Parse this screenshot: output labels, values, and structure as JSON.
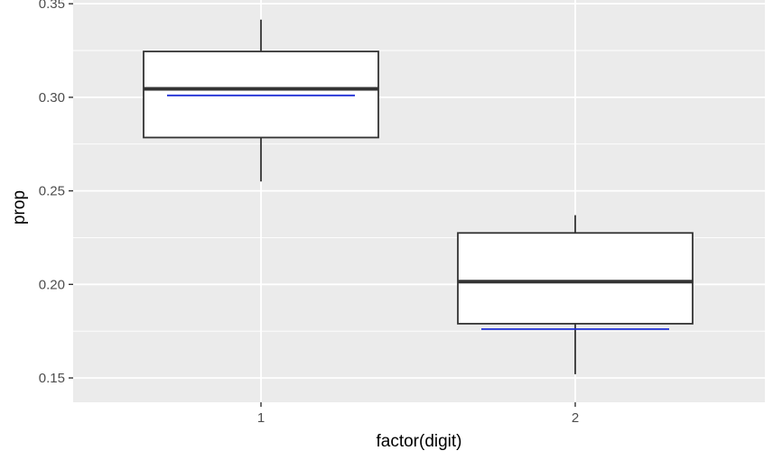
{
  "chart_data": {
    "type": "boxplot",
    "xlabel": "factor(digit)",
    "ylabel": "prop",
    "ylim": [
      0.137,
      0.352
    ],
    "yticks": [
      0.15,
      0.2,
      0.25,
      0.3,
      0.35
    ],
    "ytick_labels": [
      "0.15",
      "0.20",
      "0.25",
      "0.30",
      "0.35"
    ],
    "grid": true,
    "categories": [
      "1",
      "2"
    ],
    "boxes": [
      {
        "category": "1",
        "whisker_low": 0.255,
        "q1": 0.2785,
        "median": 0.3045,
        "q3": 0.3245,
        "whisker_high": 0.3415,
        "reference": 0.301
      },
      {
        "category": "2",
        "whisker_low": 0.152,
        "q1": 0.179,
        "median": 0.2015,
        "q3": 0.2275,
        "whisker_high": 0.237,
        "reference": 0.1761
      }
    ],
    "colors": {
      "panel": "#ebebeb",
      "grid": "#ffffff",
      "box_fill": "#ffffff",
      "box_line": "#333333",
      "reference_line": "#1f2fd6",
      "tick_mark": "#333333"
    }
  }
}
